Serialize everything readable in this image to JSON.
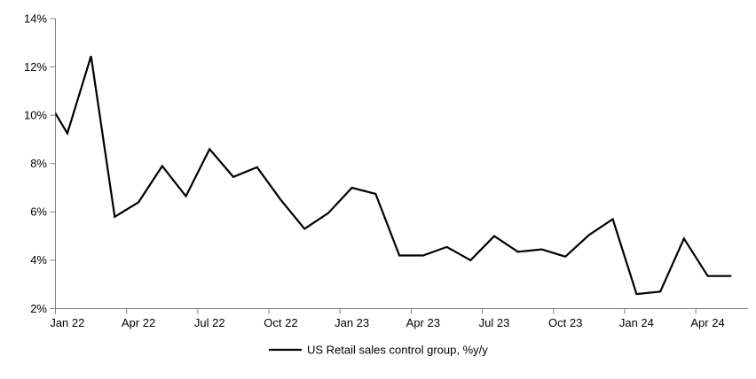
{
  "chart_data": {
    "type": "line",
    "title": "",
    "xlabel": "",
    "ylabel": "",
    "ylim": [
      2,
      14
    ],
    "y_ticks": [
      2,
      4,
      6,
      8,
      10,
      12,
      14
    ],
    "y_tick_suffix": "%",
    "x_tick_labels": [
      "Jan 22",
      "Apr 22",
      "Jul 22",
      "Oct 22",
      "Jan 23",
      "Apr 23",
      "Jul 23",
      "Oct 23",
      "Jan 24",
      "Apr 24"
    ],
    "grid": false,
    "legend_position": "bottom-center",
    "axis_color": "#808080",
    "background_color": "#ffffff",
    "categories": [
      "Dec 21",
      "Jan 22",
      "Feb 22",
      "Mar 22",
      "Apr 22",
      "May 22",
      "Jun 22",
      "Jul 22",
      "Aug 22",
      "Sep 22",
      "Oct 22",
      "Nov 22",
      "Dec 22",
      "Jan 23",
      "Feb 23",
      "Mar 23",
      "Apr 23",
      "May 23",
      "Jun 23",
      "Jul 23",
      "Aug 23",
      "Sep 23",
      "Oct 23",
      "Nov 23",
      "Dec 23",
      "Jan 24",
      "Feb 24",
      "Mar 24",
      "Apr 24",
      "May 24"
    ],
    "series": [
      {
        "name": "US Retail sales control group, %y/y",
        "color": "#000000",
        "values": [
          10.9,
          9.25,
          12.45,
          5.8,
          6.4,
          7.9,
          6.65,
          8.6,
          7.45,
          7.85,
          6.5,
          5.3,
          5.95,
          7.0,
          6.75,
          4.2,
          4.2,
          4.55,
          4.0,
          5.0,
          4.35,
          4.45,
          4.15,
          5.05,
          5.7,
          2.6,
          2.7,
          4.9,
          3.35,
          3.35
        ]
      }
    ]
  },
  "legend": {
    "label": "US Retail sales control group, %y/y"
  }
}
